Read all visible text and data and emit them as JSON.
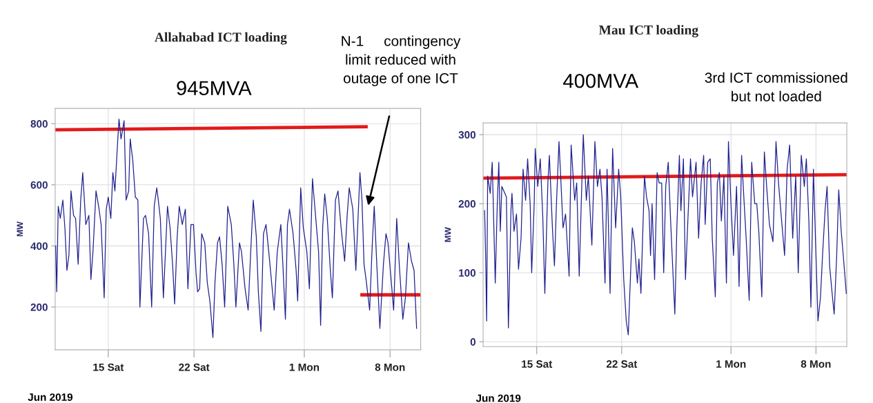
{
  "chart_data": [
    {
      "type": "line",
      "title": "Allahabad ICT loading",
      "subtitle": "945MVA",
      "ylabel": "MW",
      "annotations": [
        "Jun 2019",
        "N-1     contingency\nlimit reduced with\noutage of one ICT"
      ],
      "xlim": [
        "2019-06-10T16:00",
        "2019-07-10T12:00"
      ],
      "ylim": [
        60,
        850
      ],
      "xticks": [
        {
          "value": "2019-06-15T00:00",
          "label": "15 Sat"
        },
        {
          "value": "2019-06-22T00:00",
          "label": "22 Sat"
        },
        {
          "value": "2019-07-01T00:00",
          "label": "1 Mon"
        },
        {
          "value": "2019-07-08T00:00",
          "label": "8 Mon"
        }
      ],
      "yticks": [
        200,
        400,
        600,
        800
      ],
      "grid": true,
      "series": [
        {
          "color": "#1f1f8f",
          "x": [
            "2019-06-10T17:00",
            "2019-06-10T19:00",
            "2019-06-10T22:00",
            "2019-06-11T02:00",
            "2019-06-11T07:00",
            "2019-06-11T11:00",
            "2019-06-11T15:00",
            "2019-06-11T19:00",
            "2019-06-11T23:00",
            "2019-06-12T04:00",
            "2019-06-12T08:00",
            "2019-06-12T13:00",
            "2019-06-12T18:00",
            "2019-06-12T22:00",
            "2019-06-13T04:00",
            "2019-06-13T10:00",
            "2019-06-13T14:00",
            "2019-06-13T18:00",
            "2019-06-14T00:00",
            "2019-06-14T06:00",
            "2019-06-14T10:00",
            "2019-06-14T16:00",
            "2019-06-14T20:00",
            "2019-06-15T00:00",
            "2019-06-15T05:00",
            "2019-06-15T09:00",
            "2019-06-15T13:00",
            "2019-06-15T18:00",
            "2019-06-15T21:00",
            "2019-06-16T01:00",
            "2019-06-16T07:00",
            "2019-06-16T11:00",
            "2019-06-16T16:00",
            "2019-06-16T19:00",
            "2019-06-17T00:00",
            "2019-06-17T05:00",
            "2019-06-17T10:00",
            "2019-06-17T14:00",
            "2019-06-17T21:00",
            "2019-06-18T01:00",
            "2019-06-18T07:00",
            "2019-06-18T13:00",
            "2019-06-18T18:00",
            "2019-06-18T23:00",
            "2019-06-19T02:00",
            "2019-06-19T06:00",
            "2019-06-19T12:00",
            "2019-06-19T16:00",
            "2019-06-19T20:00",
            "2019-06-20T01:00",
            "2019-06-20T06:00",
            "2019-06-20T10:00",
            "2019-06-20T15:00",
            "2019-06-20T19:00",
            "2019-06-21T01:00",
            "2019-06-21T07:00",
            "2019-06-21T12:00",
            "2019-06-21T18:00",
            "2019-06-21T23:00",
            "2019-06-22T04:00",
            "2019-06-22T07:00",
            "2019-06-22T11:00",
            "2019-06-22T15:00",
            "2019-06-22T21:00",
            "2019-06-23T02:00",
            "2019-06-23T07:00",
            "2019-06-23T13:00",
            "2019-06-23T17:00",
            "2019-06-23T22:00",
            "2019-06-24T02:00",
            "2019-06-24T07:00",
            "2019-06-24T12:00",
            "2019-06-24T18:00",
            "2019-06-25T01:00",
            "2019-06-25T06:00",
            "2019-06-25T10:00",
            "2019-06-25T17:00",
            "2019-06-25T21:00",
            "2019-06-26T04:00",
            "2019-06-26T10:00",
            "2019-06-26T15:00",
            "2019-06-26T20:00",
            "2019-06-27T02:00",
            "2019-06-27T06:00",
            "2019-06-27T11:00",
            "2019-06-27T16:00",
            "2019-06-27T21:00",
            "2019-06-28T03:00",
            "2019-06-28T08:00",
            "2019-06-28T13:00",
            "2019-06-28T19:00",
            "2019-06-29T02:00",
            "2019-06-29T06:00",
            "2019-06-29T11:00",
            "2019-06-29T15:00",
            "2019-06-29T19:00",
            "2019-06-30T02:00",
            "2019-06-30T08:00",
            "2019-06-30T11:00",
            "2019-06-30T17:00",
            "2019-06-30T22:00",
            "2019-07-01T05:00",
            "2019-07-01T10:00",
            "2019-07-01T16:00",
            "2019-07-01T21:00",
            "2019-07-02T04:00",
            "2019-07-02T08:00",
            "2019-07-02T12:00",
            "2019-07-02T16:00",
            "2019-07-02T21:00",
            "2019-07-03T03:00",
            "2019-07-03T07:00",
            "2019-07-03T13:00",
            "2019-07-03T18:00",
            "2019-07-04T00:00",
            "2019-07-04T07:00",
            "2019-07-04T12:00",
            "2019-07-04T16:00",
            "2019-07-04T23:00",
            "2019-07-05T05:00",
            "2019-07-05T13:00",
            "2019-07-05T17:00",
            "2019-07-05T21:00",
            "2019-07-06T01:00",
            "2019-07-06T08:00",
            "2019-07-06T13:00",
            "2019-07-06T17:00",
            "2019-07-06T22:00",
            "2019-07-07T04:00",
            "2019-07-07T11:00",
            "2019-07-07T16:00",
            "2019-07-07T20:00",
            "2019-07-08T02:00",
            "2019-07-08T07:00",
            "2019-07-08T13:00",
            "2019-07-08T18:00",
            "2019-07-09T01:00",
            "2019-07-09T06:00",
            "2019-07-09T12:00",
            "2019-07-09T18:00",
            "2019-07-09T23:00",
            "2019-07-10T04:00"
          ],
          "values": [
            400,
            250,
            530,
            490,
            550,
            460,
            320,
            370,
            580,
            500,
            490,
            340,
            550,
            640,
            470,
            500,
            290,
            380,
            580,
            520,
            470,
            230,
            520,
            560,
            490,
            640,
            580,
            730,
            815,
            750,
            810,
            550,
            580,
            750,
            680,
            560,
            550,
            200,
            490,
            500,
            440,
            200,
            530,
            590,
            550,
            490,
            230,
            380,
            530,
            460,
            340,
            210,
            430,
            530,
            470,
            520,
            260,
            470,
            470,
            310,
            250,
            260,
            440,
            410,
            280,
            220,
            100,
            280,
            410,
            430,
            340,
            200,
            530,
            470,
            340,
            200,
            410,
            380,
            260,
            190,
            380,
            550,
            430,
            250,
            120,
            440,
            470,
            370,
            280,
            190,
            380,
            470,
            340,
            160,
            470,
            520,
            440,
            320,
            220,
            590,
            460,
            380,
            260,
            620,
            520,
            380,
            140,
            460,
            570,
            490,
            320,
            230,
            550,
            580,
            460,
            350,
            500,
            590,
            520,
            320,
            640,
            550,
            340,
            290,
            190,
            400,
            530,
            340,
            130,
            340,
            440,
            410,
            290,
            190,
            490,
            340,
            160,
            230,
            410,
            350,
            320,
            130
          ]
        },
        {
          "color": "#e31a1c",
          "x": [
            "2019-06-10T16:00",
            "2019-07-06T01:00"
          ],
          "values": [
            780,
            790
          ]
        },
        {
          "color": "#e31a1c",
          "x": [
            "2019-07-05T17:00",
            "2019-07-10T10:00"
          ],
          "values": [
            240,
            240
          ]
        }
      ]
    },
    {
      "type": "line",
      "title": "Mau ICT loading",
      "subtitle": "400MVA",
      "ylabel": "MW",
      "annotations": [
        "Jun 2019",
        "3rd ICT commissioned\nbut not loaded"
      ],
      "xlim": [
        "2019-06-10T14:00",
        "2019-07-10T13:00"
      ],
      "ylim": [
        -7,
        317
      ],
      "xticks": [
        {
          "value": "2019-06-15T00:00",
          "label": "15 Sat"
        },
        {
          "value": "2019-06-22T00:00",
          "label": "22 Sat"
        },
        {
          "value": "2019-07-01T00:00",
          "label": "1 Mon"
        },
        {
          "value": "2019-07-08T00:00",
          "label": "8 Mon"
        }
      ],
      "yticks": [
        0,
        100,
        200,
        300
      ],
      "grid": true,
      "series": [
        {
          "color": "#1f1f8f",
          "x": [
            "2019-06-10T17:00",
            "2019-06-10T19:00",
            "2019-06-10T21:00",
            "2019-06-10T23:00",
            "2019-06-11T04:00",
            "2019-06-11T08:00",
            "2019-06-11T14:00",
            "2019-06-11T18:00",
            "2019-06-11T21:00",
            "2019-06-12T00:00",
            "2019-06-12T03:00",
            "2019-06-12T12:00",
            "2019-06-12T16:00",
            "2019-06-12T21:00",
            "2019-06-12T23:00",
            "2019-06-13T03:00",
            "2019-06-13T08:00",
            "2019-06-13T12:00",
            "2019-06-13T17:00",
            "2019-06-13T21:00",
            "2019-06-14T02:00",
            "2019-06-14T06:00",
            "2019-06-14T11:00",
            "2019-06-14T14:00",
            "2019-06-14T19:00",
            "2019-06-14T21:00",
            "2019-06-15T02:00",
            "2019-06-15T07:00",
            "2019-06-15T12:00",
            "2019-06-15T16:00",
            "2019-06-15T22:00",
            "2019-06-16T01:00",
            "2019-06-16T07:00",
            "2019-06-16T11:00",
            "2019-06-16T15:00",
            "2019-06-16T20:00",
            "2019-06-16T23:00",
            "2019-06-17T04:00",
            "2019-06-17T09:00",
            "2019-06-17T16:00",
            "2019-06-17T20:00",
            "2019-06-18T03:00",
            "2019-06-18T07:00",
            "2019-06-18T12:00",
            "2019-06-18T16:00",
            "2019-06-18T20:00",
            "2019-06-19T02:00",
            "2019-06-19T06:00",
            "2019-06-19T13:00",
            "2019-06-19T19:00",
            "2019-06-20T00:00",
            "2019-06-20T05:00",
            "2019-06-20T09:00",
            "2019-06-20T15:00",
            "2019-06-20T19:00",
            "2019-06-21T01:00",
            "2019-06-21T06:00",
            "2019-06-21T12:00",
            "2019-06-21T18:00",
            "2019-06-21T22:00",
            "2019-06-22T04:00",
            "2019-06-22T09:00",
            "2019-06-22T13:00",
            "2019-06-22T16:00",
            "2019-06-22T21:00",
            "2019-06-23T01:00",
            "2019-06-23T07:00",
            "2019-06-23T10:00",
            "2019-06-23T14:00",
            "2019-06-23T21:00",
            "2019-06-24T01:00",
            "2019-06-24T06:00",
            "2019-06-24T09:00",
            "2019-06-24T12:00",
            "2019-06-24T17:00",
            "2019-06-24T22:00",
            "2019-06-25T02:00",
            "2019-06-25T07:00",
            "2019-06-25T11:00",
            "2019-06-25T15:00",
            "2019-06-25T20:00",
            "2019-06-26T01:00",
            "2019-06-26T05:00",
            "2019-06-26T09:00",
            "2019-06-26T13:00",
            "2019-06-26T18:00",
            "2019-06-26T21:00",
            "2019-06-27T02:00",
            "2019-06-27T06:00",
            "2019-06-27T11:00",
            "2019-06-27T16:00",
            "2019-06-27T20:00",
            "2019-06-28T03:00",
            "2019-06-28T08:00",
            "2019-06-28T13:00",
            "2019-06-28T18:00",
            "2019-06-28T21:00",
            "2019-06-29T02:00",
            "2019-06-29T07:00",
            "2019-06-29T11:00",
            "2019-06-29T17:00",
            "2019-06-29T21:00",
            "2019-06-30T01:00",
            "2019-06-30T05:00",
            "2019-06-30T10:00",
            "2019-06-30T15:00",
            "2019-06-30T19:00",
            "2019-07-01T00:00",
            "2019-07-01T05:00",
            "2019-07-01T11:00",
            "2019-07-01T16:00",
            "2019-07-01T21:00",
            "2019-07-02T01:00",
            "2019-07-02T06:00",
            "2019-07-02T12:00",
            "2019-07-02T17:00",
            "2019-07-02T23:00",
            "2019-07-03T03:00",
            "2019-07-03T07:00",
            "2019-07-03T13:00",
            "2019-07-03T18:00",
            "2019-07-03T23:00",
            "2019-07-04T04:00",
            "2019-07-04T11:00",
            "2019-07-04T17:00",
            "2019-07-04T22:00",
            "2019-07-05T03:00",
            "2019-07-05T10:00",
            "2019-07-05T15:00",
            "2019-07-05T20:00",
            "2019-07-06T02:00",
            "2019-07-06T08:00",
            "2019-07-06T13:00",
            "2019-07-06T19:00",
            "2019-07-07T01:00",
            "2019-07-07T05:00",
            "2019-07-07T10:00",
            "2019-07-07T14:00",
            "2019-07-07T19:00",
            "2019-07-07T23:00",
            "2019-07-08T04:00",
            "2019-07-08T09:00",
            "2019-07-08T13:00",
            "2019-07-08T18:00",
            "2019-07-08T22:00",
            "2019-07-09T03:00",
            "2019-07-09T08:00",
            "2019-07-09T12:00",
            "2019-07-09T17:00",
            "2019-07-09T21:00",
            "2019-07-10T02:00",
            "2019-07-10T06:00",
            "2019-07-10T12:00"
          ],
          "values": [
            190,
            125,
            30,
            240,
            215,
            260,
            85,
            200,
            260,
            160,
            225,
            210,
            20,
            190,
            215,
            160,
            185,
            105,
            150,
            250,
            205,
            265,
            200,
            100,
            200,
            280,
            225,
            265,
            180,
            70,
            230,
            270,
            165,
            110,
            200,
            290,
            245,
            165,
            185,
            95,
            285,
            205,
            230,
            95,
            200,
            300,
            205,
            240,
            140,
            290,
            225,
            250,
            210,
            85,
            250,
            70,
            280,
            165,
            250,
            210,
            90,
            30,
            10,
            70,
            165,
            145,
            85,
            120,
            70,
            240,
            210,
            190,
            125,
            200,
            90,
            245,
            230,
            230,
            100,
            225,
            260,
            170,
            105,
            40,
            165,
            270,
            190,
            265,
            90,
            180,
            265,
            210,
            260,
            150,
            230,
            270,
            170,
            260,
            265,
            150,
            65,
            230,
            245,
            175,
            240,
            85,
            290,
            200,
            125,
            225,
            80,
            270,
            215,
            150,
            60,
            260,
            200,
            200,
            160,
            65,
            275,
            220,
            170,
            145,
            290,
            230,
            185,
            125,
            250,
            285,
            150,
            240,
            100,
            270,
            225,
            265,
            175,
            50,
            250,
            150,
            30,
            65,
            125,
            190,
            225,
            110,
            70,
            40,
            125,
            220,
            160,
            125,
            70
          ]
        },
        {
          "color": "#e31a1c",
          "x": [
            "2019-06-10T17:00",
            "2019-07-10T13:00"
          ],
          "values": [
            237,
            242
          ]
        }
      ]
    }
  ]
}
